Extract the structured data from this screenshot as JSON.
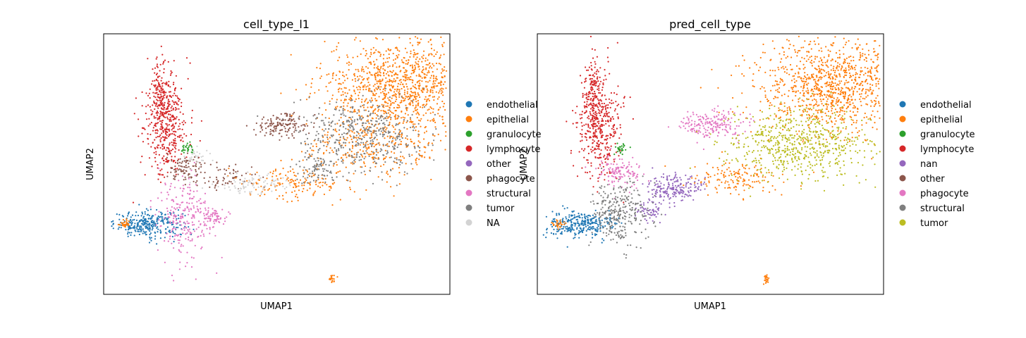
{
  "figure": {
    "panels": [
      {
        "title": "cell_type_l1",
        "xlabel": "UMAP1",
        "ylabel": "UMAP2",
        "legend": [
          {
            "label": "endothelial",
            "color": "#1f77b4"
          },
          {
            "label": "epithelial",
            "color": "#ff7f0e"
          },
          {
            "label": "granulocyte",
            "color": "#2ca02c"
          },
          {
            "label": "lymphocyte",
            "color": "#d62728"
          },
          {
            "label": "other",
            "color": "#9467bd"
          },
          {
            "label": "phagocyte",
            "color": "#8c564b"
          },
          {
            "label": "structural",
            "color": "#e377c2"
          },
          {
            "label": "tumor",
            "color": "#7f7f7f"
          },
          {
            "label": "NA",
            "color": "#d3d3d3"
          }
        ]
      },
      {
        "title": "pred_cell_type",
        "xlabel": "UMAP1",
        "ylabel": "UMAP2",
        "legend": [
          {
            "label": "endothelial",
            "color": "#1f77b4"
          },
          {
            "label": "epithelial",
            "color": "#ff7f0e"
          },
          {
            "label": "granulocyte",
            "color": "#2ca02c"
          },
          {
            "label": "lymphocyte",
            "color": "#d62728"
          },
          {
            "label": "nan",
            "color": "#9467bd"
          },
          {
            "label": "other",
            "color": "#8c564b"
          },
          {
            "label": "phagocyte",
            "color": "#e377c2"
          },
          {
            "label": "structural",
            "color": "#7f7f7f"
          },
          {
            "label": "tumor",
            "color": "#bcbd22"
          }
        ]
      }
    ]
  },
  "chart_data": [
    {
      "type": "scatter",
      "title": "cell_type_l1",
      "xlabel": "UMAP1",
      "ylabel": "UMAP2",
      "ticks": "none",
      "grid": false,
      "legend_position": "right-outside",
      "series": [
        {
          "name": "endothelial",
          "color": "#1f77b4",
          "clusters": [
            [
              0.13,
              0.27,
              0.05,
              0.025,
              300
            ]
          ]
        },
        {
          "name": "epithelial",
          "color": "#ff7f0e",
          "clusters": [
            [
              0.86,
              0.8,
              0.11,
              0.09,
              1100
            ],
            [
              0.78,
              0.56,
              0.1,
              0.06,
              300
            ],
            [
              0.55,
              0.43,
              0.08,
              0.03,
              150
            ],
            [
              0.06,
              0.27,
              0.01,
              0.008,
              30
            ],
            [
              0.66,
              0.06,
              0.004,
              0.01,
              20
            ]
          ]
        },
        {
          "name": "granulocyte",
          "color": "#2ca02c",
          "clusters": [
            [
              0.24,
              0.56,
              0.01,
              0.01,
              30
            ]
          ]
        },
        {
          "name": "lymphocyte",
          "color": "#d62728",
          "clusters": [
            [
              0.18,
              0.66,
              0.03,
              0.1,
              450
            ],
            [
              0.16,
              0.78,
              0.01,
              0.06,
              80
            ]
          ]
        },
        {
          "name": "other",
          "color": "#9467bd",
          "clusters": []
        },
        {
          "name": "phagocyte",
          "color": "#8c564b",
          "clusters": [
            [
              0.51,
              0.65,
              0.04,
              0.022,
              150
            ],
            [
              0.24,
              0.48,
              0.03,
              0.03,
              100
            ],
            [
              0.36,
              0.45,
              0.04,
              0.02,
              60
            ]
          ]
        },
        {
          "name": "structural",
          "color": "#e377c2",
          "clusters": [
            [
              0.23,
              0.3,
              0.04,
              0.07,
              250
            ],
            [
              0.32,
              0.3,
              0.02,
              0.02,
              60
            ]
          ]
        },
        {
          "name": "tumor",
          "color": "#7f7f7f",
          "clusters": [
            [
              0.75,
              0.61,
              0.09,
              0.07,
              450
            ],
            [
              0.61,
              0.48,
              0.03,
              0.03,
              80
            ]
          ]
        },
        {
          "name": "NA",
          "color": "#d3d3d3",
          "clusters": [
            [
              0.43,
              0.42,
              0.06,
              0.02,
              90
            ],
            [
              0.27,
              0.53,
              0.02,
              0.02,
              30
            ]
          ]
        }
      ]
    },
    {
      "type": "scatter",
      "title": "pred_cell_type",
      "xlabel": "UMAP1",
      "ylabel": "UMAP2",
      "ticks": "none",
      "grid": false,
      "legend_position": "right-outside",
      "series": [
        {
          "name": "endothelial",
          "color": "#1f77b4",
          "clusters": [
            [
              0.13,
              0.27,
              0.05,
              0.025,
              300
            ]
          ]
        },
        {
          "name": "epithelial",
          "color": "#ff7f0e",
          "clusters": [
            [
              0.86,
              0.8,
              0.11,
              0.09,
              1100
            ],
            [
              0.58,
              0.45,
              0.07,
              0.03,
              150
            ],
            [
              0.06,
              0.27,
              0.01,
              0.008,
              30
            ],
            [
              0.66,
              0.06,
              0.004,
              0.01,
              20
            ]
          ]
        },
        {
          "name": "granulocyte",
          "color": "#2ca02c",
          "clusters": [
            [
              0.24,
              0.56,
              0.01,
              0.01,
              30
            ]
          ]
        },
        {
          "name": "lymphocyte",
          "color": "#d62728",
          "clusters": [
            [
              0.18,
              0.66,
              0.03,
              0.1,
              450
            ],
            [
              0.16,
              0.78,
              0.01,
              0.06,
              80
            ]
          ]
        },
        {
          "name": "nan",
          "color": "#9467bd",
          "clusters": [
            [
              0.39,
              0.41,
              0.04,
              0.025,
              200
            ],
            [
              0.33,
              0.32,
              0.02,
              0.02,
              60
            ]
          ]
        },
        {
          "name": "other",
          "color": "#8c564b",
          "clusters": []
        },
        {
          "name": "phagocyte",
          "color": "#e377c2",
          "clusters": [
            [
              0.5,
              0.65,
              0.05,
              0.025,
              200
            ],
            [
              0.24,
              0.47,
              0.03,
              0.03,
              120
            ]
          ]
        },
        {
          "name": "structural",
          "color": "#7f7f7f",
          "clusters": [
            [
              0.24,
              0.32,
              0.04,
              0.06,
              300
            ]
          ]
        },
        {
          "name": "tumor",
          "color": "#bcbd22",
          "clusters": [
            [
              0.76,
              0.58,
              0.1,
              0.07,
              650
            ]
          ]
        }
      ]
    }
  ]
}
